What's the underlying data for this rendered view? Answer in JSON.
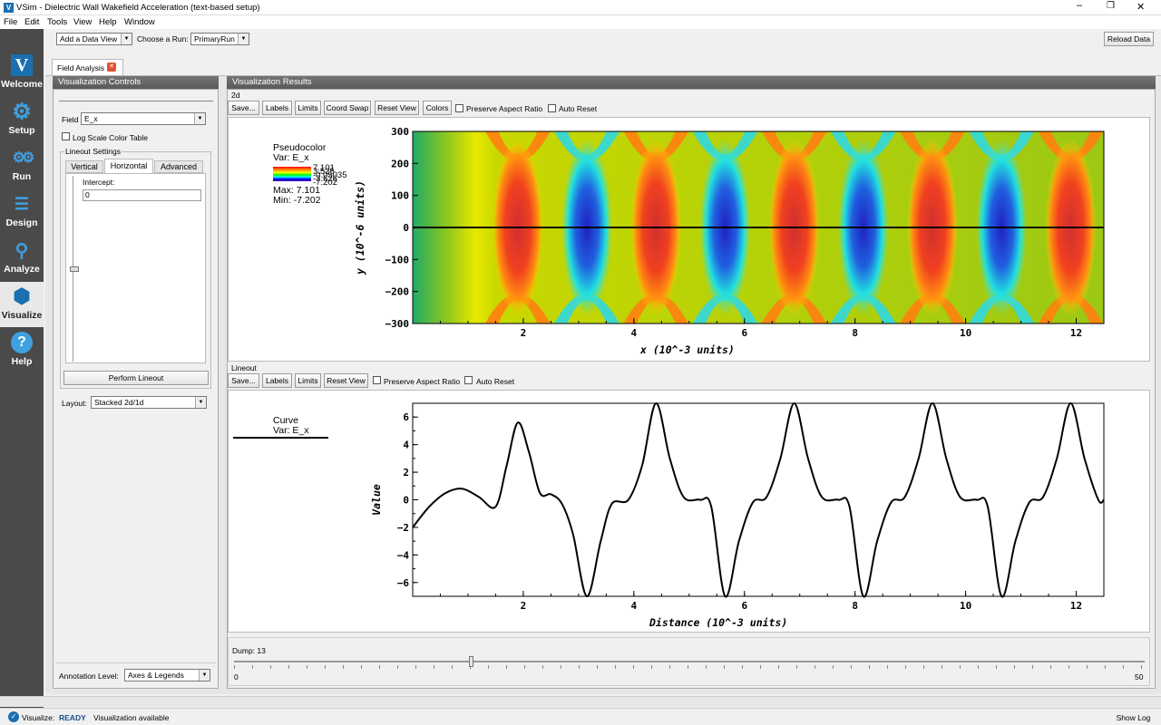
{
  "window": {
    "title": "VSim - Dielectric Wall Wakefield Acceleration (text-based setup)"
  },
  "menu": [
    "File",
    "Edit",
    "Tools",
    "View",
    "Help",
    "Window"
  ],
  "toolbar": {
    "add_view": "Add a Data View",
    "choose_run_label": "Choose a Run:",
    "run_value": "PrimaryRun",
    "reload": "Reload Data"
  },
  "sidebar": {
    "items": [
      {
        "label": "Welcome",
        "icon": "vsim-logo-icon"
      },
      {
        "label": "Setup",
        "icon": "gear-icon"
      },
      {
        "label": "Run",
        "icon": "gears-icon"
      },
      {
        "label": "Design",
        "icon": "design-icon"
      },
      {
        "label": "Analyze",
        "icon": "magnifier-icon"
      },
      {
        "label": "Visualize",
        "icon": "cube-icon"
      },
      {
        "label": "Help",
        "icon": "help-icon"
      }
    ]
  },
  "tab": {
    "label": "Field Analysis"
  },
  "controls": {
    "header": "Visualization Controls",
    "field_label": "Field",
    "field_value": "E_x",
    "log_scale": "Log Scale Color Table",
    "lineout_group": "Lineout Settings",
    "tabs": [
      "Vertical",
      "Horizontal",
      "Advanced"
    ],
    "intercept_label": "Intercept:",
    "intercept_value": "0",
    "perform": "Perform Lineout",
    "layout_label": "Layout:",
    "layout_value": "Stacked 2d/1d",
    "annotation_label": "Annotation Level:",
    "annotation_value": "Axes & Legends"
  },
  "results": {
    "header": "Visualization Results",
    "plot2d_label": "2d",
    "lineout_label": "Lineout",
    "buttons2d": [
      "Save...",
      "Labels",
      "Limits",
      "Coord Swap",
      "Reset View",
      "Colors"
    ],
    "buttons1d": [
      "Save...",
      "Labels",
      "Limits",
      "Reset View"
    ],
    "preserve": "Preserve Aspect Ratio",
    "auto_reset": "Auto Reset"
  },
  "legend2d": {
    "title": "Pseudocolor",
    "var": "Var: E_x",
    "ticks": [
      "7.101",
      "3.525",
      "-0.05035",
      "-3.626",
      "-7.202"
    ],
    "max": "Max:  7.101",
    "min": "Min: -7.202"
  },
  "legend1d": {
    "title": "Curve",
    "var": "Var: E_x"
  },
  "dump": {
    "label": "Dump: 13",
    "min": "0",
    "max": "50",
    "value": 13
  },
  "status": {
    "prefix": "Visualize:",
    "state": "READY",
    "message": "Visualization available",
    "show_log": "Show Log"
  },
  "colors": {
    "side_bg": "#4a4a4a",
    "accent": "#1a6fb0",
    "ready": "#1a4f8a"
  },
  "chart_data": [
    {
      "type": "heatmap",
      "title": "",
      "xlabel": "x (10^-3 units)",
      "ylabel": "y (10^-6 units)",
      "xlim": [
        0,
        12.5
      ],
      "ylim": [
        -300,
        300
      ],
      "xticks": [
        "2",
        "4",
        "6",
        "8",
        "10",
        "12"
      ],
      "yticks": [
        "300",
        "200",
        "100",
        "0",
        "−100",
        "−200",
        "−300"
      ],
      "lineout_y": 0,
      "field_peaks": [
        {
          "x": 1.9,
          "sign": 1
        },
        {
          "x": 3.15,
          "sign": -1
        },
        {
          "x": 4.4,
          "sign": 1
        },
        {
          "x": 5.65,
          "sign": -1
        },
        {
          "x": 6.9,
          "sign": 1
        },
        {
          "x": 8.15,
          "sign": -1
        },
        {
          "x": 9.4,
          "sign": 1
        },
        {
          "x": 10.65,
          "sign": -1
        },
        {
          "x": 11.9,
          "sign": 1
        }
      ]
    },
    {
      "type": "line",
      "title": "",
      "xlabel": "Distance (10^-3 units)",
      "ylabel": "Value",
      "xlim": [
        0,
        12.5
      ],
      "ylim": [
        -7,
        7
      ],
      "xticks": [
        "2",
        "4",
        "6",
        "8",
        "10",
        "12"
      ],
      "yticks": [
        "6",
        "4",
        "2",
        "0",
        "−2",
        "−4",
        "−6"
      ],
      "series": [
        {
          "name": "Curve",
          "x": [
            0,
            0.3,
            0.6,
            0.9,
            1.2,
            1.5,
            1.7,
            1.9,
            2.1,
            2.3,
            2.5,
            2.7,
            2.9,
            3.15,
            3.4,
            3.6,
            3.9,
            4.15,
            4.4,
            4.65,
            4.9,
            5.2,
            5.4,
            5.65,
            5.9,
            6.15,
            6.4,
            6.65,
            6.9,
            7.15,
            7.4,
            7.7,
            7.9,
            8.15,
            8.4,
            8.65,
            8.9,
            9.15,
            9.4,
            9.65,
            9.9,
            10.2,
            10.4,
            10.65,
            10.9,
            11.15,
            11.4,
            11.65,
            11.9,
            12.15,
            12.4,
            12.5
          ],
          "y": [
            -2,
            -0.5,
            0.5,
            0.8,
            0.2,
            -0.5,
            2.5,
            5.6,
            3.5,
            0.5,
            0.4,
            -0.3,
            -2.5,
            -7,
            -3,
            -0.3,
            0,
            2.5,
            7,
            3,
            0.2,
            0,
            -0.5,
            -7,
            -3,
            -0.2,
            0.2,
            3,
            7,
            3,
            0.2,
            0,
            -0.5,
            -7,
            -3,
            -0.2,
            0.2,
            3,
            7,
            3,
            0.2,
            0,
            -0.5,
            -7,
            -3,
            -0.2,
            0.2,
            3,
            7,
            3,
            0,
            0
          ]
        }
      ]
    }
  ]
}
